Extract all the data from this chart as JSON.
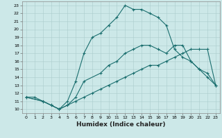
{
  "xlabel": "Humidex (Indice chaleur)",
  "bg_color": "#cce8e8",
  "line_color": "#1a6e6e",
  "xlim": [
    -0.5,
    23.5
  ],
  "ylim": [
    9.5,
    23.5
  ],
  "xticks": [
    0,
    1,
    2,
    3,
    4,
    5,
    6,
    7,
    8,
    9,
    10,
    11,
    12,
    13,
    14,
    15,
    16,
    17,
    18,
    19,
    20,
    21,
    22,
    23
  ],
  "yticks": [
    10,
    11,
    12,
    13,
    14,
    15,
    16,
    17,
    18,
    19,
    20,
    21,
    22,
    23
  ],
  "line1_x": [
    0,
    1,
    2,
    3,
    4,
    5,
    6,
    7,
    8,
    9,
    10,
    11,
    12,
    13,
    14,
    15,
    16,
    17,
    18,
    19,
    20,
    21,
    22,
    23
  ],
  "line1_y": [
    11.5,
    11.5,
    11.0,
    10.5,
    10.0,
    11.0,
    13.5,
    17.0,
    19.0,
    19.5,
    20.5,
    21.5,
    23.0,
    22.5,
    22.5,
    22.0,
    21.5,
    20.5,
    17.5,
    16.5,
    16.0,
    15.0,
    14.0,
    13.0
  ],
  "line2_x": [
    0,
    2,
    3,
    4,
    5,
    6,
    7,
    9,
    10,
    11,
    12,
    13,
    14,
    15,
    16,
    17,
    18,
    19,
    20,
    21,
    22,
    23
  ],
  "line2_y": [
    11.5,
    11.0,
    10.5,
    10.0,
    10.5,
    11.5,
    13.5,
    14.5,
    15.5,
    16.0,
    17.0,
    17.5,
    18.0,
    18.0,
    17.5,
    17.0,
    18.0,
    18.0,
    16.0,
    15.0,
    14.5,
    13.0
  ],
  "line3_x": [
    0,
    2,
    3,
    4,
    5,
    6,
    7,
    8,
    9,
    10,
    11,
    12,
    13,
    14,
    15,
    16,
    17,
    18,
    19,
    20,
    21,
    22,
    23
  ],
  "line3_y": [
    11.5,
    11.0,
    10.5,
    10.0,
    10.5,
    11.0,
    11.5,
    12.0,
    12.5,
    13.0,
    13.5,
    14.0,
    14.5,
    15.0,
    15.5,
    15.5,
    16.0,
    16.5,
    17.0,
    17.5,
    17.5,
    17.5,
    13.0
  ]
}
